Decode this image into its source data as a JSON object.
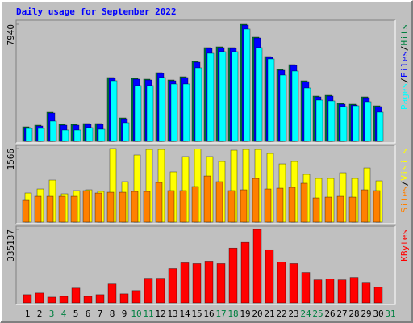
{
  "title": "Daily usage for September 2022",
  "legend_separator": "/",
  "chart_data": [
    {
      "type": "bar",
      "ylim": [
        0,
        7940
      ],
      "yticks": [
        7940
      ],
      "series": [
        {
          "name": "Hits",
          "color": "#008040",
          "values": [
            986,
            1095,
            1971,
            1150,
            1150,
            1205,
            1205,
            4326,
            1588,
            4271,
            4217,
            4655,
            4162,
            4381,
            5421,
            6352,
            6407,
            6352,
            7940,
            7064,
            5750,
            4874,
            5202,
            4107,
            3067,
            3121,
            2574,
            2519,
            3012,
            2409,
            null
          ]
        },
        {
          "name": "Files",
          "color": "#0000ff",
          "values": [
            931,
            1040,
            1916,
            1095,
            1095,
            1150,
            1150,
            4271,
            1533,
            4217,
            4162,
            4600,
            4107,
            4326,
            5366,
            6297,
            6352,
            6297,
            7885,
            7009,
            5695,
            4819,
            5147,
            4052,
            3012,
            3067,
            2519,
            2464,
            2957,
            2355,
            null
          ]
        },
        {
          "name": "Pages",
          "color": "#00ffff",
          "values": [
            876,
            876,
            1369,
            767,
            767,
            931,
            821,
            4107,
            1259,
            3778,
            3778,
            4326,
            3888,
            3888,
            4983,
            5969,
            6078,
            6078,
            7612,
            6352,
            5586,
            4490,
            4764,
            3614,
            2793,
            2738,
            2355,
            2409,
            2683,
            1971,
            null
          ]
        }
      ]
    },
    {
      "type": "bar",
      "ylim": [
        0,
        1566
      ],
      "yticks": [
        1566
      ],
      "series": [
        {
          "name": "Visits",
          "color": "#ffff00",
          "values": [
            619,
            705,
            894,
            602,
            671,
            688,
            654,
            1566,
            860,
            1428,
            1548,
            1548,
            1067,
            1394,
            1560,
            1394,
            1290,
            1531,
            1548,
            1548,
            1462,
            1238,
            1290,
            1015,
            929,
            929,
            1049,
            929,
            1152,
            877,
            null
          ]
        },
        {
          "name": "Sites",
          "color": "#ff8000",
          "values": [
            464,
            550,
            550,
            550,
            550,
            671,
            619,
            636,
            636,
            654,
            654,
            843,
            671,
            671,
            757,
            980,
            860,
            671,
            688,
            929,
            705,
            722,
            740,
            826,
            516,
            533,
            550,
            533,
            688,
            671,
            null
          ]
        }
      ]
    },
    {
      "type": "bar",
      "ylim": [
        0,
        335137
      ],
      "yticks": [
        335137
      ],
      "categories": [
        "1",
        "2",
        "3",
        "4",
        "5",
        "6",
        "7",
        "8",
        "9",
        "10",
        "11",
        "12",
        "13",
        "14",
        "15",
        "16",
        "17",
        "18",
        "19",
        "20",
        "21",
        "22",
        "23",
        "24",
        "25",
        "26",
        "27",
        "28",
        "29",
        "30",
        "31"
      ],
      "label_colors": [
        "#000000",
        "#000000",
        "#008040",
        "#008040",
        "#000000",
        "#000000",
        "#000000",
        "#000000",
        "#000000",
        "#008040",
        "#008040",
        "#000000",
        "#000000",
        "#000000",
        "#000000",
        "#000000",
        "#008040",
        "#008040",
        "#000000",
        "#000000",
        "#000000",
        "#000000",
        "#000000",
        "#008040",
        "#008040",
        "#000000",
        "#000000",
        "#000000",
        "#000000",
        "#000000",
        "#008040"
      ],
      "series": [
        {
          "name": "KBytes",
          "color": "#ff0000",
          "values": [
            37240,
            44688,
            26068,
            29792,
            67032,
            29792,
            37240,
            85652,
            40964,
            55860,
            111720,
            111720,
            156408,
            182476,
            178752,
            189924,
            178752,
            249508,
            275576,
            335137,
            242060,
            186200,
            178752,
            137788,
            104272,
            107996,
            104272,
            115444,
            93100,
            70756,
            null
          ]
        }
      ]
    }
  ]
}
